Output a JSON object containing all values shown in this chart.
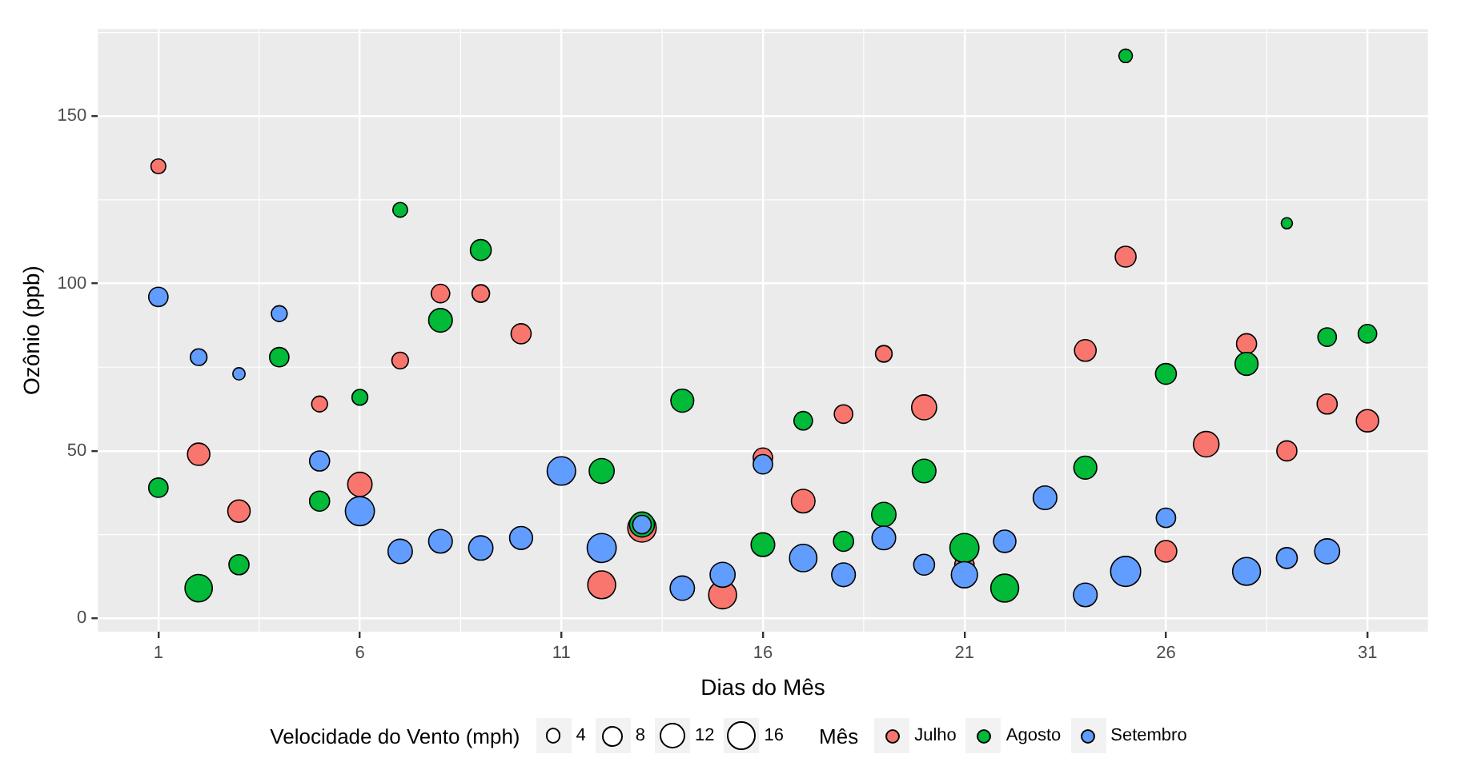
{
  "chart_data": {
    "type": "bubble",
    "xlabel": "Dias do Mês",
    "ylabel": "Ozônio (ppb)",
    "legend_title": "Mês",
    "annotations": [
      "Velocidade do Vento (mph)"
    ],
    "series": [
      {
        "name": "Julho",
        "color": "#f8766d",
        "x": [
          1,
          2,
          3,
          5,
          6,
          7,
          8,
          9,
          10,
          12,
          13,
          15,
          16,
          17,
          18,
          19,
          20,
          21,
          24,
          25,
          26,
          27,
          28,
          29,
          30,
          31
        ],
        "values": [
          135,
          49,
          32,
          64,
          40,
          77,
          97,
          97,
          85,
          10,
          27,
          7,
          48,
          35,
          61,
          79,
          63,
          16,
          80,
          108,
          20,
          52,
          82,
          50,
          64,
          59
        ],
        "sizes": [
          4.1,
          9.2,
          9.2,
          4.6,
          10.9,
          5.1,
          6.3,
          5.7,
          7.4,
          14.3,
          14.9,
          14.3,
          6.9,
          10.3,
          6.3,
          5.1,
          11.5,
          6.9,
          8.6,
          8.0,
          8.6,
          12.0,
          7.4,
          7.4,
          7.4,
          9.2
        ]
      },
      {
        "name": "Agosto",
        "color": "#00ba38",
        "x": [
          1,
          2,
          3,
          4,
          5,
          6,
          7,
          8,
          9,
          12,
          13,
          14,
          16,
          17,
          18,
          19,
          20,
          21,
          22,
          24,
          25,
          26,
          28,
          29,
          30,
          31
        ],
        "values": [
          39,
          9,
          16,
          78,
          35,
          66,
          122,
          89,
          110,
          44,
          28,
          65,
          22,
          59,
          23,
          31,
          44,
          21,
          9,
          45,
          168,
          73,
          76,
          118,
          84,
          85
        ],
        "sizes": [
          6.9,
          13.8,
          7.4,
          6.9,
          7.4,
          4.6,
          4.0,
          10.3,
          8.0,
          11.5,
          11.5,
          9.7,
          10.3,
          6.3,
          7.4,
          10.9,
          10.3,
          15.5,
          14.3,
          9.7,
          3.4,
          8.0,
          9.7,
          2.3,
          6.3,
          6.3
        ]
      },
      {
        "name": "Setembro",
        "color": "#619cff",
        "x": [
          1,
          2,
          3,
          4,
          5,
          6,
          7,
          8,
          9,
          10,
          11,
          12,
          13,
          14,
          15,
          16,
          17,
          18,
          19,
          20,
          21,
          22,
          23,
          24,
          25,
          26,
          28,
          29,
          30
        ],
        "values": [
          96,
          78,
          73,
          91,
          47,
          32,
          20,
          23,
          21,
          24,
          44,
          21,
          28,
          9,
          13,
          46,
          18,
          13,
          24,
          16,
          13,
          23,
          36,
          7,
          14,
          30,
          14,
          18,
          20
        ],
        "sizes": [
          6.9,
          5.1,
          2.8,
          4.6,
          7.4,
          15.5,
          10.9,
          10.3,
          10.9,
          9.7,
          14.9,
          15.5,
          6.3,
          10.9,
          11.5,
          6.9,
          13.8,
          10.3,
          10.3,
          8.0,
          12.6,
          9.2,
          10.3,
          10.3,
          16.6,
          6.9,
          14.3,
          8.0,
          11.5
        ]
      }
    ],
    "size_legend": [
      4,
      8,
      12,
      16
    ],
    "xlim": [
      -0.5,
      32.5
    ],
    "xticks": [
      1,
      6,
      11,
      16,
      21,
      26,
      31
    ],
    "ylim": [
      -4,
      176
    ],
    "yticks": [
      0,
      50,
      100,
      150
    ],
    "grid": true,
    "legend": "bottom",
    "marker": "circle"
  }
}
